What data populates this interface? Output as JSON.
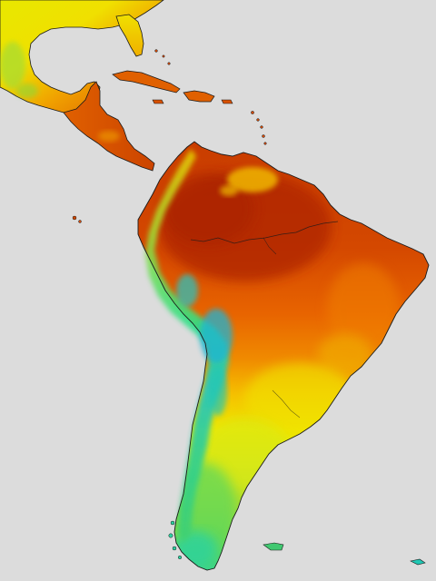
{
  "map": {
    "kind": "temperature-heatmap",
    "region": "Latin America",
    "background_color": "#dcdcdc",
    "border_color": "#1a1a1a",
    "legend_visible": false,
    "color_scale": {
      "cold": [
        "#1e9bd6",
        "#20c8c8",
        "#2de08a"
      ],
      "mild": [
        "#8ad83a",
        "#c8e61e",
        "#f0f000"
      ],
      "warm": [
        "#f5c800",
        "#f08a00",
        "#e05a00",
        "#c83c00",
        "#b42a00"
      ]
    }
  }
}
